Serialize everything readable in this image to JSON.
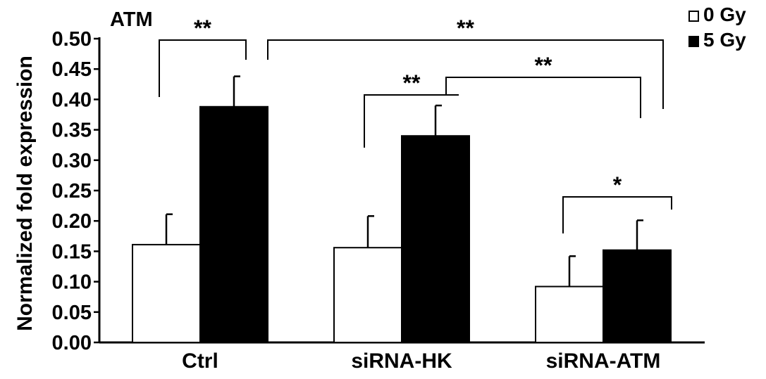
{
  "chart_data": {
    "type": "bar",
    "title": "ATM",
    "xlabel": "",
    "ylabel": "Normalized fold expression",
    "ylim": [
      0,
      0.5
    ],
    "yticks": [
      "0.00",
      "0.05",
      "0.10",
      "0.15",
      "0.20",
      "0.25",
      "0.30",
      "0.35",
      "0.40",
      "0.45",
      "0.50"
    ],
    "categories": [
      "Ctrl",
      "siRNA-HK",
      "siRNA-ATM"
    ],
    "series": [
      {
        "name": "0 Gy",
        "fill": "#ffffff",
        "values": [
          0.161,
          0.156,
          0.092
        ],
        "errors": [
          0.05,
          0.052,
          0.05
        ]
      },
      {
        "name": "5 Gy",
        "fill": "#000000",
        "values": [
          0.388,
          0.34,
          0.152
        ],
        "errors": [
          0.05,
          0.05,
          0.049
        ]
      }
    ],
    "legend_position": "top-right",
    "grid": false,
    "significance": [
      {
        "label": "**",
        "from": [
          0,
          0
        ],
        "to": [
          0,
          1
        ]
      },
      {
        "label": "**",
        "from": [
          0,
          1
        ],
        "to": [
          2,
          1
        ]
      },
      {
        "label": "**",
        "from": [
          1,
          0
        ],
        "to": [
          1,
          1
        ]
      },
      {
        "label": "**",
        "from": [
          1,
          1
        ],
        "to": [
          2,
          1
        ]
      },
      {
        "label": "*",
        "from": [
          2,
          0
        ],
        "to": [
          2,
          1
        ]
      }
    ]
  }
}
